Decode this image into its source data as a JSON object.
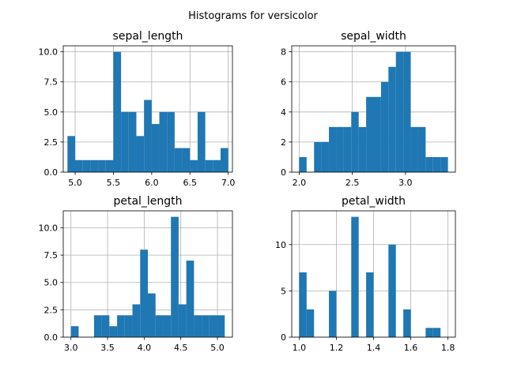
{
  "figure_title": "Histograms for versicolor",
  "colors": {
    "bar": "#1f77b4",
    "grid": "#b0b0b0"
  },
  "chart_data": [
    {
      "type": "bar",
      "title": "sepal_length",
      "grid": true,
      "bins": [
        [
          4.9,
          5.0,
          3
        ],
        [
          5.0,
          5.1,
          1
        ],
        [
          5.1,
          5.2,
          1
        ],
        [
          5.2,
          5.3,
          1
        ],
        [
          5.3,
          5.4,
          1
        ],
        [
          5.4,
          5.5,
          1
        ],
        [
          5.5,
          5.6,
          10
        ],
        [
          5.6,
          5.7,
          5
        ],
        [
          5.7,
          5.8,
          5
        ],
        [
          5.8,
          5.9,
          3
        ],
        [
          5.9,
          6.0,
          6
        ],
        [
          6.0,
          6.1,
          4
        ],
        [
          6.1,
          6.2,
          5
        ],
        [
          6.2,
          6.3,
          5
        ],
        [
          6.3,
          6.4,
          2
        ],
        [
          6.4,
          6.5,
          2
        ],
        [
          6.5,
          6.6,
          1
        ],
        [
          6.6,
          6.7,
          5
        ],
        [
          6.7,
          6.8,
          1
        ],
        [
          6.8,
          6.9,
          1
        ],
        [
          6.9,
          7.0,
          2
        ]
      ],
      "xlim": [
        4.845,
        7.055
      ],
      "ylim": [
        0,
        10.5
      ],
      "xticks": [
        {
          "v": 5.0,
          "label": "5.0"
        },
        {
          "v": 5.5,
          "label": "5.5"
        },
        {
          "v": 6.0,
          "label": "6.0"
        },
        {
          "v": 6.5,
          "label": "6.5"
        },
        {
          "v": 7.0,
          "label": "7.0"
        }
      ],
      "yticks": [
        {
          "v": 0,
          "label": "0.0"
        },
        {
          "v": 2.5,
          "label": "2.5"
        },
        {
          "v": 5.0,
          "label": "5.0"
        },
        {
          "v": 7.5,
          "label": "7.5"
        },
        {
          "v": 10.0,
          "label": "10.0"
        }
      ]
    },
    {
      "type": "bar",
      "title": "sepal_width",
      "grid": true,
      "bins": [
        [
          2.0,
          2.07,
          1
        ],
        [
          2.07,
          2.14,
          0
        ],
        [
          2.14,
          2.21,
          2
        ],
        [
          2.21,
          2.28,
          2
        ],
        [
          2.28,
          2.35,
          3
        ],
        [
          2.35,
          2.42,
          3
        ],
        [
          2.42,
          2.49,
          3
        ],
        [
          2.49,
          2.56,
          4
        ],
        [
          2.56,
          2.63,
          3
        ],
        [
          2.63,
          2.7,
          5
        ],
        [
          2.7,
          2.77,
          5
        ],
        [
          2.77,
          2.84,
          6
        ],
        [
          2.84,
          2.91,
          7
        ],
        [
          2.91,
          2.98,
          8
        ],
        [
          2.98,
          3.05,
          8
        ],
        [
          3.05,
          3.12,
          3
        ],
        [
          3.12,
          3.19,
          3
        ],
        [
          3.19,
          3.26,
          1
        ],
        [
          3.26,
          3.33,
          1
        ],
        [
          3.33,
          3.4,
          1
        ]
      ],
      "xlim": [
        1.93,
        3.47
      ],
      "ylim": [
        0,
        8.4
      ],
      "xticks": [
        {
          "v": 2.0,
          "label": "2.0"
        },
        {
          "v": 2.5,
          "label": "2.5"
        },
        {
          "v": 3.0,
          "label": "3.0"
        }
      ],
      "yticks": [
        {
          "v": 0,
          "label": "0"
        },
        {
          "v": 2,
          "label": "2"
        },
        {
          "v": 4,
          "label": "4"
        },
        {
          "v": 6,
          "label": "6"
        },
        {
          "v": 8,
          "label": "8"
        }
      ]
    },
    {
      "type": "bar",
      "title": "petal_length",
      "grid": true,
      "bins": [
        [
          3.0,
          3.105,
          1
        ],
        [
          3.105,
          3.21,
          0
        ],
        [
          3.21,
          3.315,
          0
        ],
        [
          3.315,
          3.42,
          2
        ],
        [
          3.42,
          3.525,
          2
        ],
        [
          3.525,
          3.63,
          1
        ],
        [
          3.63,
          3.735,
          2
        ],
        [
          3.735,
          3.84,
          2
        ],
        [
          3.84,
          3.945,
          3
        ],
        [
          3.945,
          4.05,
          8
        ],
        [
          4.05,
          4.155,
          4
        ],
        [
          4.155,
          4.26,
          2
        ],
        [
          4.26,
          4.365,
          2
        ],
        [
          4.365,
          4.47,
          11
        ],
        [
          4.47,
          4.575,
          3
        ],
        [
          4.575,
          4.68,
          7
        ],
        [
          4.68,
          4.785,
          2
        ],
        [
          4.785,
          4.89,
          2
        ],
        [
          4.89,
          4.995,
          2
        ],
        [
          4.995,
          5.1,
          2
        ]
      ],
      "xlim": [
        2.895,
        5.205
      ],
      "ylim": [
        0,
        11.55
      ],
      "xticks": [
        {
          "v": 3.0,
          "label": "3.0"
        },
        {
          "v": 3.5,
          "label": "3.5"
        },
        {
          "v": 4.0,
          "label": "4.0"
        },
        {
          "v": 4.5,
          "label": "4.5"
        },
        {
          "v": 5.0,
          "label": "5.0"
        }
      ],
      "yticks": [
        {
          "v": 0,
          "label": "0.0"
        },
        {
          "v": 2.5,
          "label": "2.5"
        },
        {
          "v": 5.0,
          "label": "5.0"
        },
        {
          "v": 7.5,
          "label": "7.5"
        },
        {
          "v": 10.0,
          "label": "10.0"
        }
      ]
    },
    {
      "type": "bar",
      "title": "petal_width",
      "grid": true,
      "bins": [
        [
          1.0,
          1.04,
          7
        ],
        [
          1.04,
          1.08,
          3
        ],
        [
          1.08,
          1.12,
          0
        ],
        [
          1.12,
          1.16,
          0
        ],
        [
          1.16,
          1.2,
          5
        ],
        [
          1.2,
          1.24,
          0
        ],
        [
          1.24,
          1.28,
          0
        ],
        [
          1.28,
          1.32,
          13
        ],
        [
          1.32,
          1.36,
          0
        ],
        [
          1.36,
          1.4,
          7
        ],
        [
          1.4,
          1.44,
          0
        ],
        [
          1.44,
          1.48,
          0
        ],
        [
          1.48,
          1.52,
          10
        ],
        [
          1.52,
          1.56,
          0
        ],
        [
          1.56,
          1.6,
          3
        ],
        [
          1.6,
          1.64,
          0
        ],
        [
          1.64,
          1.68,
          0
        ],
        [
          1.68,
          1.72,
          1
        ],
        [
          1.72,
          1.76,
          1
        ],
        [
          1.76,
          1.8,
          0
        ]
      ],
      "xlim": [
        0.96,
        1.84
      ],
      "ylim": [
        0,
        13.65
      ],
      "xticks": [
        {
          "v": 1.0,
          "label": "1.0"
        },
        {
          "v": 1.2,
          "label": "1.2"
        },
        {
          "v": 1.4,
          "label": "1.4"
        },
        {
          "v": 1.6,
          "label": "1.6"
        },
        {
          "v": 1.8,
          "label": "1.8"
        }
      ],
      "yticks": [
        {
          "v": 0,
          "label": "0"
        },
        {
          "v": 5,
          "label": "5"
        },
        {
          "v": 10,
          "label": "10"
        }
      ]
    }
  ]
}
